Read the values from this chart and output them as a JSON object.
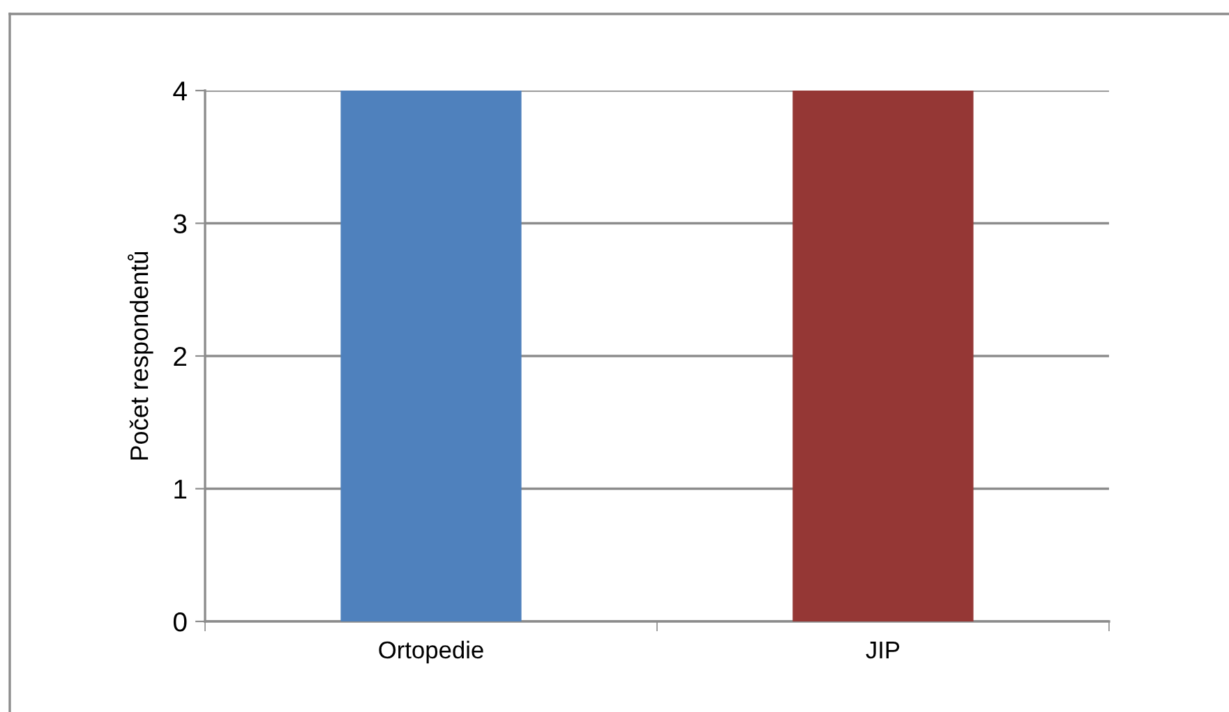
{
  "chart_data": {
    "type": "bar",
    "ylabel": "Počet respondentů",
    "categories": [
      "Ortopedie",
      "JIP"
    ],
    "values": [
      4,
      4
    ],
    "colors": [
      "#4f81bd",
      "#953735"
    ],
    "ylim": [
      0,
      4
    ],
    "yticks": [
      0,
      1,
      2,
      3,
      4
    ],
    "grid": "y",
    "legend": false
  }
}
